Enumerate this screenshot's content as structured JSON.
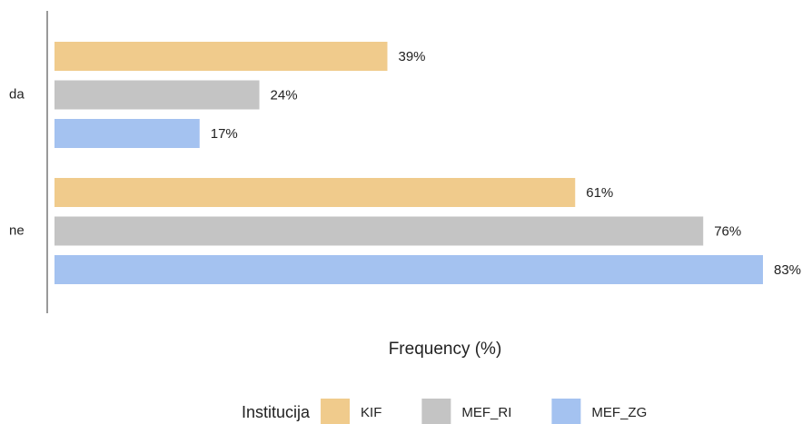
{
  "chart_data": {
    "type": "bar",
    "orientation": "horizontal",
    "x_label": "Frequency (%)",
    "categories": [
      "da",
      "ne"
    ],
    "legend_title": "Institucija",
    "series": [
      {
        "name": "KIF",
        "color": "#f0cb8c",
        "values": [
          39,
          61
        ],
        "value_labels": [
          "39%",
          "61%"
        ]
      },
      {
        "name": "MEF_RI",
        "color": "#c4c4c4",
        "values": [
          24,
          76
        ],
        "value_labels": [
          "24%",
          "76%"
        ]
      },
      {
        "name": "MEF_ZG",
        "color": "#a4c2f0",
        "values": [
          17,
          83
        ],
        "value_labels": [
          "17%",
          "83%"
        ]
      }
    ]
  }
}
